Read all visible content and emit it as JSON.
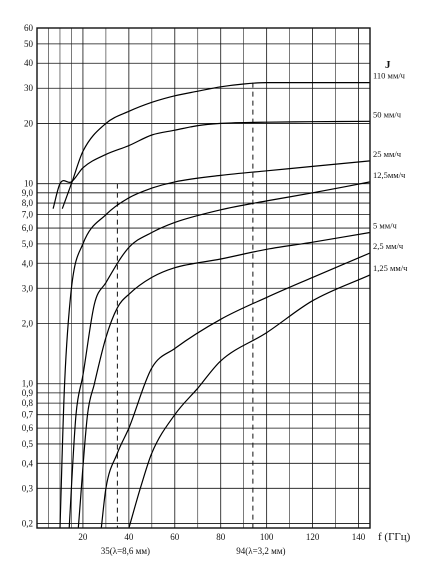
{
  "chart_data": {
    "type": "line",
    "y_axis_label": "J",
    "x_axis_label": "f (ГГц)",
    "x_scale": "linear",
    "y_scale": "log",
    "xlim": [
      0,
      145
    ],
    "ylim": [
      0.19,
      60
    ],
    "x_ticks": [
      20,
      40,
      60,
      80,
      100,
      120,
      140
    ],
    "x_tick_labels": [
      "20",
      "40",
      "60",
      "80",
      "100",
      "120",
      "140"
    ],
    "y_ticks": [
      0.2,
      0.3,
      0.4,
      0.5,
      0.6,
      0.7,
      0.8,
      0.9,
      1.0,
      2.0,
      3.0,
      4.0,
      5.0,
      6.0,
      7.0,
      8.0,
      9.0,
      10,
      20,
      30,
      40,
      50,
      60
    ],
    "y_tick_labels": [
      "0,2",
      "0,3",
      "0,4",
      "0,5",
      "0,6",
      "0,7",
      "0,8",
      "0,9",
      "1,0",
      "2,0",
      "3,0",
      "4,0",
      "5,0",
      "6,0",
      "7,0",
      "8,0",
      "9,0",
      "10",
      "20",
      "30",
      "40",
      "50",
      "60"
    ],
    "extra_gridlines_x": [
      5,
      10,
      15,
      30,
      50,
      70,
      90,
      110,
      130
    ],
    "vertical_markers": [
      {
        "x": 35,
        "label": "35(λ=8,6 мм)",
        "y_top": 10
      },
      {
        "x": 94,
        "label": "94(λ=3,2 мм)",
        "y_top": 32
      }
    ],
    "series": [
      {
        "name": "110 мм/ч",
        "points": [
          [
            11,
            7.5
          ],
          [
            15,
            10
          ],
          [
            20,
            14.5
          ],
          [
            30,
            20
          ],
          [
            40,
            23
          ],
          [
            50,
            25.5
          ],
          [
            60,
            27.5
          ],
          [
            70,
            29
          ],
          [
            80,
            30.5
          ],
          [
            90,
            31.5
          ],
          [
            100,
            32
          ],
          [
            120,
            32
          ],
          [
            145,
            32
          ]
        ]
      },
      {
        "name": "50 мм/ч",
        "points": [
          [
            7,
            7.5
          ],
          [
            10,
            10
          ],
          [
            15,
            10.2
          ],
          [
            20,
            12
          ],
          [
            30,
            14
          ],
          [
            40,
            15.5
          ],
          [
            50,
            17.5
          ],
          [
            60,
            18.5
          ],
          [
            70,
            19.5
          ],
          [
            80,
            20
          ],
          [
            100,
            20.3
          ],
          [
            120,
            20.4
          ],
          [
            145,
            20.5
          ]
        ]
      },
      {
        "name": "25 мм/ч",
        "points": [
          [
            10,
            0.19
          ],
          [
            12,
            1.0
          ],
          [
            15,
            3.0
          ],
          [
            20,
            5.0
          ],
          [
            30,
            7.0
          ],
          [
            40,
            8.5
          ],
          [
            50,
            9.5
          ],
          [
            60,
            10.2
          ],
          [
            80,
            11
          ],
          [
            100,
            11.6
          ],
          [
            120,
            12.2
          ],
          [
            145,
            13
          ]
        ]
      },
      {
        "name": "12,5мм/ч",
        "points": [
          [
            14,
            0.19
          ],
          [
            17,
            0.7
          ],
          [
            20,
            1.1
          ],
          [
            25,
            2.5
          ],
          [
            30,
            3.2
          ],
          [
            40,
            4.8
          ],
          [
            50,
            5.7
          ],
          [
            60,
            6.4
          ],
          [
            80,
            7.4
          ],
          [
            100,
            8.2
          ],
          [
            120,
            9.0
          ],
          [
            145,
            10.2
          ]
        ]
      },
      {
        "name": "5 мм/ч",
        "points": [
          [
            18,
            0.19
          ],
          [
            22,
            0.7
          ],
          [
            25,
            1.0
          ],
          [
            30,
            1.7
          ],
          [
            35,
            2.4
          ],
          [
            40,
            2.8
          ],
          [
            50,
            3.4
          ],
          [
            60,
            3.8
          ],
          [
            80,
            4.2
          ],
          [
            100,
            4.7
          ],
          [
            120,
            5.1
          ],
          [
            145,
            5.7
          ]
        ]
      },
      {
        "name": "2,5 мм/ч",
        "points": [
          [
            28,
            0.19
          ],
          [
            30,
            0.3
          ],
          [
            35,
            0.45
          ],
          [
            40,
            0.6
          ],
          [
            50,
            1.2
          ],
          [
            60,
            1.5
          ],
          [
            80,
            2.1
          ],
          [
            100,
            2.7
          ],
          [
            120,
            3.4
          ],
          [
            145,
            4.5
          ]
        ]
      },
      {
        "name": "1,25 мм/ч",
        "points": [
          [
            40,
            0.19
          ],
          [
            45,
            0.3
          ],
          [
            50,
            0.45
          ],
          [
            60,
            0.7
          ],
          [
            70,
            0.95
          ],
          [
            80,
            1.3
          ],
          [
            100,
            1.8
          ],
          [
            120,
            2.6
          ],
          [
            145,
            3.5
          ]
        ]
      }
    ]
  }
}
